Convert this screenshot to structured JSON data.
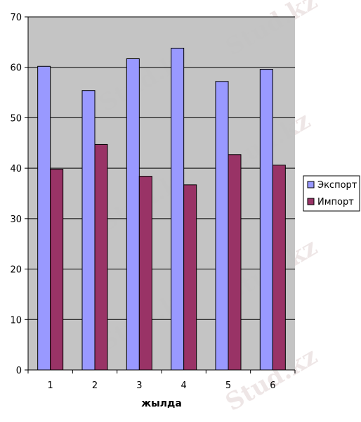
{
  "chart_data": {
    "type": "bar",
    "categories": [
      "1",
      "2",
      "3",
      "4",
      "5",
      "6"
    ],
    "series": [
      {
        "name": "Экспорт",
        "values": [
          60.2,
          55.4,
          61.7,
          63.8,
          57.2,
          59.6
        ]
      },
      {
        "name": "Импорт",
        "values": [
          39.8,
          44.7,
          38.4,
          36.7,
          42.7,
          40.6
        ]
      }
    ],
    "title": "",
    "xlabel": "жылда",
    "ylabel": "",
    "ylim": [
      0,
      70
    ],
    "yticks": [
      0,
      10,
      20,
      30,
      40,
      50,
      60,
      70
    ],
    "grid": true,
    "legend_position": "right",
    "colors": {
      "plot_background": "#c0c0c0",
      "series": [
        "#9999ff",
        "#993366"
      ],
      "axis": "#000000"
    }
  },
  "watermark": {
    "text": "Stud.kz"
  }
}
